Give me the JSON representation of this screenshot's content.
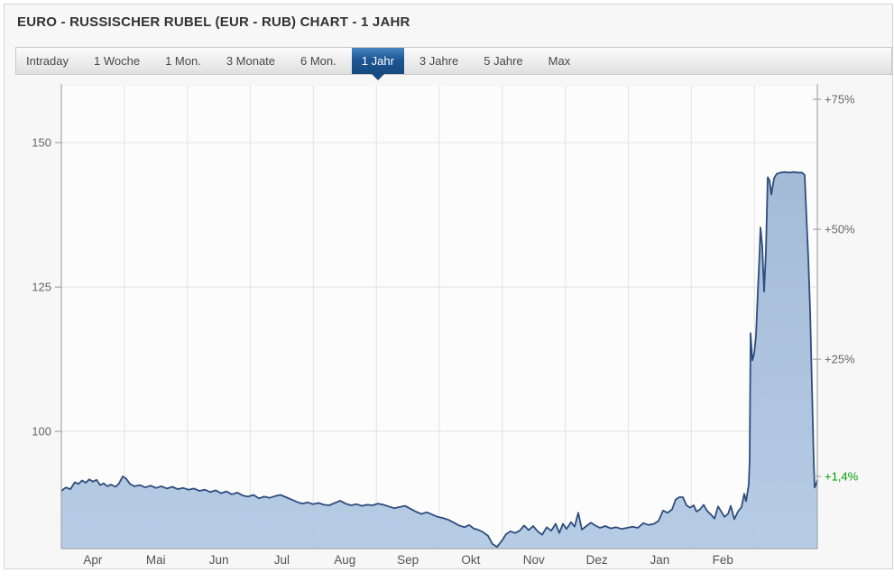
{
  "header": {
    "title": "EURO - RUSSISCHER RUBEL (EUR - RUB) CHART - 1 JAHR"
  },
  "tabs": {
    "items": [
      {
        "label": "Intraday"
      },
      {
        "label": "1 Woche"
      },
      {
        "label": "1 Mon."
      },
      {
        "label": "3 Monate"
      },
      {
        "label": "6 Mon."
      },
      {
        "label": "1 Jahr",
        "active": true
      },
      {
        "label": "3 Jahre"
      },
      {
        "label": "5 Jahre"
      },
      {
        "label": "Max"
      }
    ],
    "active_label": "1 Jahr"
  },
  "colors": {
    "accent_blue": "#1d5694",
    "active_tab_dark": "#164a80",
    "line": "#2e4d7d",
    "area_fill_top": "#9fb8d6",
    "area_fill_bottom": "#b3c9e3",
    "grid": "#e3e3e3",
    "axis": "#999999",
    "tick_text": "#666666",
    "month_text": "#555555",
    "green": "#00a000",
    "plot_bg": "#fcfcfc"
  },
  "chart_data": {
    "type": "area",
    "title": "EURO - RUSSISCHER RUBEL (EUR - RUB) CHART - 1 JAHR",
    "xlabel": "",
    "ylabel": "",
    "x_categories": [
      "Apr",
      "Mai",
      "Jun",
      "Jul",
      "Aug",
      "Sep",
      "Okt",
      "Nov",
      "Dez",
      "Jan",
      "Feb"
    ],
    "left_axis_ticks": [
      150,
      125,
      100
    ],
    "right_axis_ticks": [
      {
        "label": "+75%",
        "value": 157.5
      },
      {
        "label": "+50%",
        "value": 135.0
      },
      {
        "label": "+25%",
        "value": 112.5
      },
      {
        "label": "+1,4%",
        "value": 92.2,
        "highlight": "green"
      }
    ],
    "last_change_percent": "+1,4%",
    "value_range": [
      79.7,
      159.85
    ],
    "plot_x_range": [
      63,
      901
    ],
    "grid": true,
    "legend": "none",
    "series": [
      {
        "name": "EUR - RUB",
        "points": [
          [
            63,
            89.7
          ],
          [
            68,
            90.3
          ],
          [
            73,
            90.0
          ],
          [
            78,
            91.2
          ],
          [
            82,
            90.9
          ],
          [
            86,
            91.5
          ],
          [
            90,
            91.1
          ],
          [
            94,
            91.7
          ],
          [
            98,
            91.3
          ],
          [
            102,
            91.6
          ],
          [
            106,
            90.7
          ],
          [
            110,
            91.0
          ],
          [
            114,
            90.5
          ],
          [
            118,
            90.8
          ],
          [
            123,
            90.4
          ],
          [
            127,
            91.0
          ],
          [
            131,
            92.2
          ],
          [
            135,
            91.8
          ],
          [
            139,
            90.9
          ],
          [
            144,
            90.5
          ],
          [
            150,
            90.7
          ],
          [
            156,
            90.3
          ],
          [
            162,
            90.6
          ],
          [
            168,
            90.2
          ],
          [
            174,
            90.5
          ],
          [
            180,
            90.1
          ],
          [
            186,
            90.4
          ],
          [
            192,
            90.0
          ],
          [
            198,
            90.2
          ],
          [
            204,
            89.9
          ],
          [
            210,
            90.1
          ],
          [
            216,
            89.7
          ],
          [
            222,
            89.9
          ],
          [
            228,
            89.5
          ],
          [
            234,
            89.8
          ],
          [
            240,
            89.3
          ],
          [
            246,
            89.6
          ],
          [
            252,
            89.1
          ],
          [
            258,
            89.4
          ],
          [
            264,
            88.9
          ],
          [
            270,
            88.7
          ],
          [
            276,
            89.0
          ],
          [
            282,
            88.4
          ],
          [
            288,
            88.7
          ],
          [
            294,
            88.5
          ],
          [
            300,
            88.8
          ],
          [
            306,
            89.0
          ],
          [
            312,
            88.6
          ],
          [
            318,
            88.2
          ],
          [
            324,
            87.8
          ],
          [
            330,
            87.5
          ],
          [
            336,
            87.7
          ],
          [
            342,
            87.4
          ],
          [
            348,
            87.6
          ],
          [
            354,
            87.3
          ],
          [
            360,
            87.2
          ],
          [
            366,
            87.6
          ],
          [
            372,
            88.0
          ],
          [
            378,
            87.5
          ],
          [
            384,
            87.2
          ],
          [
            390,
            87.4
          ],
          [
            396,
            87.1
          ],
          [
            402,
            87.3
          ],
          [
            408,
            87.2
          ],
          [
            414,
            87.5
          ],
          [
            420,
            87.3
          ],
          [
            426,
            87.0
          ],
          [
            432,
            86.7
          ],
          [
            438,
            86.9
          ],
          [
            444,
            87.1
          ],
          [
            450,
            86.6
          ],
          [
            456,
            86.1
          ],
          [
            462,
            85.7
          ],
          [
            468,
            86.0
          ],
          [
            474,
            85.6
          ],
          [
            480,
            85.2
          ],
          [
            486,
            85.0
          ],
          [
            492,
            84.7
          ],
          [
            498,
            84.2
          ],
          [
            504,
            83.7
          ],
          [
            510,
            83.4
          ],
          [
            515,
            83.8
          ],
          [
            520,
            83.2
          ],
          [
            526,
            82.9
          ],
          [
            531,
            82.5
          ],
          [
            536,
            81.9
          ],
          [
            541,
            80.5
          ],
          [
            546,
            80.0
          ],
          [
            551,
            81.0
          ],
          [
            556,
            82.2
          ],
          [
            561,
            82.7
          ],
          [
            566,
            82.4
          ],
          [
            571,
            82.8
          ],
          [
            576,
            83.7
          ],
          [
            581,
            82.9
          ],
          [
            586,
            83.6
          ],
          [
            591,
            82.7
          ],
          [
            596,
            82.1
          ],
          [
            601,
            83.4
          ],
          [
            606,
            82.8
          ],
          [
            611,
            84.0
          ],
          [
            615,
            82.4
          ],
          [
            619,
            84.0
          ],
          [
            623,
            83.1
          ],
          [
            628,
            84.3
          ],
          [
            632,
            83.5
          ],
          [
            636,
            85.9
          ],
          [
            640,
            83.0
          ],
          [
            645,
            83.6
          ],
          [
            650,
            84.2
          ],
          [
            655,
            83.7
          ],
          [
            660,
            83.3
          ],
          [
            666,
            83.6
          ],
          [
            672,
            83.2
          ],
          [
            678,
            83.4
          ],
          [
            684,
            83.1
          ],
          [
            690,
            83.3
          ],
          [
            696,
            83.5
          ],
          [
            702,
            83.3
          ],
          [
            708,
            84.1
          ],
          [
            714,
            83.8
          ],
          [
            720,
            84.0
          ],
          [
            725,
            84.5
          ],
          [
            730,
            86.3
          ],
          [
            735,
            85.9
          ],
          [
            740,
            86.5
          ],
          [
            744,
            88.2
          ],
          [
            748,
            88.6
          ],
          [
            752,
            88.6
          ],
          [
            756,
            87.2
          ],
          [
            760,
            86.8
          ],
          [
            764,
            87.2
          ],
          [
            767,
            86.1
          ],
          [
            771,
            86.5
          ],
          [
            775,
            87.3
          ],
          [
            779,
            86.2
          ],
          [
            783,
            85.6
          ],
          [
            787,
            84.9
          ],
          [
            791,
            87.0
          ],
          [
            795,
            86.0
          ],
          [
            798,
            85.2
          ],
          [
            802,
            85.7
          ],
          [
            805,
            87.1
          ],
          [
            809,
            84.8
          ],
          [
            813,
            86.1
          ],
          [
            817,
            86.9
          ],
          [
            820,
            89.2
          ],
          [
            822,
            87.9
          ],
          [
            825,
            90.8
          ],
          [
            826,
            95.0
          ],
          [
            827,
            117.0
          ],
          [
            829,
            112.3
          ],
          [
            831,
            113.5
          ],
          [
            833,
            116.5
          ],
          [
            835,
            124.0
          ],
          [
            837,
            131.0
          ],
          [
            838,
            135.3
          ],
          [
            840,
            132.0
          ],
          [
            842,
            124.2
          ],
          [
            844,
            131.0
          ],
          [
            846,
            144.0
          ],
          [
            848,
            143.5
          ],
          [
            850,
            141.0
          ],
          [
            853,
            143.8
          ],
          [
            856,
            144.6
          ],
          [
            860,
            144.8
          ],
          [
            865,
            144.9
          ],
          [
            870,
            144.8
          ],
          [
            875,
            144.9
          ],
          [
            880,
            144.8
          ],
          [
            884,
            144.8
          ],
          [
            887,
            144.4
          ],
          [
            889,
            137.0
          ],
          [
            891,
            130.0
          ],
          [
            893,
            121.0
          ],
          [
            895,
            108.0
          ],
          [
            897,
            95.0
          ],
          [
            898,
            90.3
          ],
          [
            900,
            91.0
          ],
          [
            901,
            91.6
          ]
        ]
      }
    ]
  }
}
